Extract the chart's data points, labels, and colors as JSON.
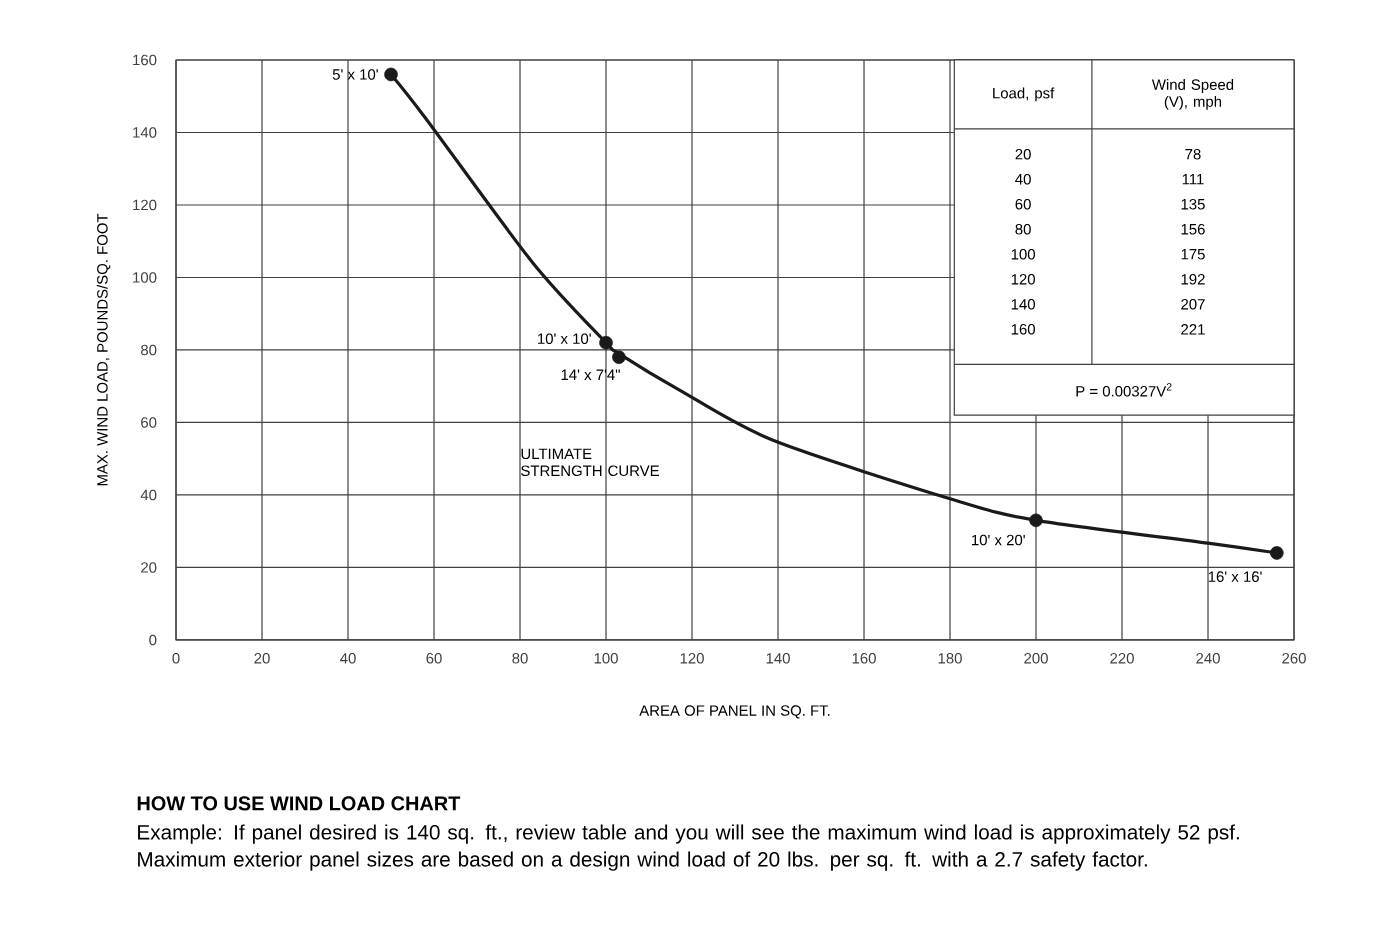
{
  "chart_data": {
    "type": "line",
    "xlabel": "AREA OF PANEL IN SQ. FT.",
    "ylabel": "MAX. WIND LOAD, POUNDS/SQ. FOOT",
    "xlim": [
      0,
      260
    ],
    "ylim": [
      0,
      160
    ],
    "xticks": [
      0,
      20,
      40,
      60,
      80,
      100,
      120,
      140,
      160,
      180,
      200,
      220,
      240,
      260
    ],
    "yticks": [
      0,
      20,
      40,
      60,
      80,
      100,
      120,
      140,
      160
    ],
    "grid": true,
    "series": [
      {
        "color": "#1a1a1a",
        "marker": "none",
        "line_style": "solid",
        "x": [
          50,
          58,
          83,
          100,
          103,
          117,
          139,
          181,
          200,
          240,
          256
        ],
        "values": [
          156,
          144,
          104,
          82,
          79,
          69,
          55,
          38.6,
          33,
          26.7,
          24
        ]
      },
      {
        "type": "scatter",
        "color": "#1a1a1a",
        "marker": "circle",
        "x": [
          50,
          100,
          103,
          200,
          256
        ],
        "values": [
          156,
          82,
          78,
          33,
          24
        ]
      }
    ],
    "annotations": [
      {
        "text": "5' x 10'",
        "x": 50,
        "y": 156
      },
      {
        "text": "10' x 10'",
        "x": 100,
        "y": 82
      },
      {
        "text": "14' x 7'4\"",
        "x": 103,
        "y": 78
      },
      {
        "text": "10' x 20'",
        "x": 200,
        "y": 33
      },
      {
        "text": "16' x 16'",
        "x": 256,
        "y": 24
      },
      "ULTIMATE STRENGTH CURVE",
      "Load, psf",
      "Wind Speed (V), mph",
      "20",
      "40",
      "60",
      "80",
      "100",
      "120",
      "140",
      "160",
      "78",
      "111",
      "135",
      "156",
      "175",
      "192",
      "207",
      "221",
      "P = 0.00327V$^{2}$",
      "HOW TO USE WIND LOAD CHART",
      "Example: If panel desired is 140 sq. ft., review table and you will see the maximum wind load is approximately 52 psf. Maximum exterior panel sizes are based on a design wind load of 20 lbs. per sq. ft. with a 2.7 safety factor."
    ]
  }
}
